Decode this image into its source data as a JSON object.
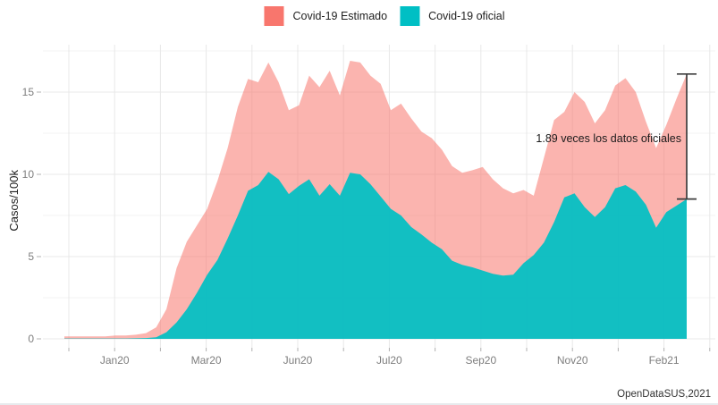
{
  "legend": {
    "items": [
      {
        "id": "estimado",
        "label": "Covid-19 Estimado",
        "color": "#F8766D"
      },
      {
        "id": "oficial",
        "label": "Covid-19 oficial",
        "color": "#00BFC4"
      }
    ]
  },
  "y_axis": {
    "title": "Casos/100k",
    "tick_labels": [
      "0",
      "5",
      "10",
      "15"
    ]
  },
  "x_axis": {
    "tick_labels": [
      "Jan20",
      "Mar20",
      "Jun20",
      "Jul20",
      "Sep20",
      "Nov20",
      "Feb21"
    ]
  },
  "annotation": {
    "text": "1.89 veces los datos oficiales"
  },
  "caption": {
    "text": "OpenDataSUS,2021"
  },
  "chart_data": {
    "type": "area",
    "title": "",
    "xlabel": "",
    "ylabel": "Casos/100k",
    "x_unit": "semana (Dic 2019 - Feb 2021)",
    "x_tick_labels": [
      "Jan20",
      "Mar20",
      "Jun20",
      "Jul20",
      "Sep20",
      "Nov20",
      "Feb21"
    ],
    "y_ticks": [
      0,
      5,
      10,
      15
    ],
    "y_minor_ticks": [
      2.5,
      7.5,
      12.5,
      17.5
    ],
    "ylim": [
      0,
      17.5
    ],
    "grid": true,
    "legend_position": "top-center",
    "series": [
      {
        "name": "Covid-19 Estimado",
        "color": "#F8766D",
        "fill_opacity": 0.55,
        "values": [
          0.15,
          0.15,
          0.15,
          0.15,
          0.15,
          0.2,
          0.2,
          0.25,
          0.35,
          0.7,
          1.8,
          4.3,
          5.9,
          6.9,
          7.9,
          9.6,
          11.6,
          14.1,
          15.8,
          15.6,
          16.8,
          15.6,
          13.9,
          14.2,
          16.0,
          15.3,
          16.3,
          14.8,
          16.9,
          16.8,
          16.0,
          15.5,
          13.9,
          14.3,
          13.4,
          12.6,
          12.2,
          11.5,
          10.5,
          10.1,
          10.25,
          10.45,
          9.7,
          9.15,
          8.85,
          9.05,
          8.7,
          11.0,
          13.3,
          13.8,
          15.0,
          14.4,
          13.1,
          13.9,
          15.4,
          15.85,
          15.0,
          13.2,
          11.6,
          13.0,
          14.6,
          16.1
        ]
      },
      {
        "name": "Covid-19 oficial",
        "color": "#00BFC4",
        "fill_opacity": 0.93,
        "values": [
          0.02,
          0.02,
          0.02,
          0.02,
          0.02,
          0.02,
          0.02,
          0.03,
          0.05,
          0.1,
          0.4,
          1.0,
          1.8,
          2.8,
          3.9,
          4.8,
          6.1,
          7.5,
          9.0,
          9.35,
          10.15,
          9.7,
          8.8,
          9.3,
          9.7,
          8.7,
          9.4,
          8.7,
          10.1,
          10.0,
          9.4,
          8.65,
          7.9,
          7.5,
          6.8,
          6.35,
          5.85,
          5.45,
          4.75,
          4.5,
          4.35,
          4.15,
          3.95,
          3.85,
          3.9,
          4.6,
          5.1,
          5.85,
          7.1,
          8.6,
          8.85,
          8.0,
          7.4,
          8.0,
          9.15,
          9.35,
          8.95,
          8.15,
          6.75,
          7.7,
          8.1,
          8.5
        ]
      }
    ],
    "annotation": "1.89 veces los datos oficiales",
    "error_bar": {
      "top_value": 16.1,
      "bottom_value": 8.5
    },
    "final_ratio": 1.89
  }
}
